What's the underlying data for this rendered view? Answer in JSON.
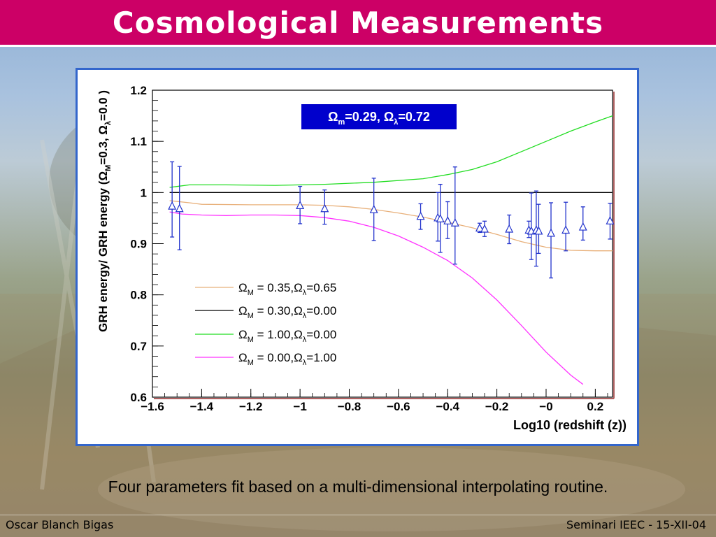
{
  "slide": {
    "title": "Cosmological Measurements",
    "caption": "Four parameters fit based on a multi-dimensional interpolating routine.",
    "footer_left": "Oscar Blanch Bigas",
    "footer_right": "Seminari IEEC - 15-XII-04",
    "title_color": "#cc0066",
    "panel_border_color": "#3366cc"
  },
  "chart_data": {
    "type": "scatter",
    "xlabel": "Log10 (redshift (z))",
    "ylabel_parts": [
      "GRH energy/ GRH energy  (",
      "Ω",
      "M",
      "=0.3, ",
      "Ω",
      "λ",
      "=0.0 )"
    ],
    "xlim": [
      -1.6,
      0.27
    ],
    "ylim": [
      0.6,
      1.2
    ],
    "xticks": [
      -1.6,
      -1.4,
      -1.2,
      -1,
      -0.8,
      -0.6,
      -0.4,
      -0.2,
      0,
      0.2
    ],
    "xtick_labels": [
      "−1.6",
      "−1.4",
      "−1.2",
      "−1",
      "−0.8",
      "−0.6",
      "−0.4",
      "−0.2",
      "−0",
      "0.2"
    ],
    "yticks": [
      0.6,
      0.7,
      0.8,
      0.9,
      1.0,
      1.1,
      1.2
    ],
    "ytick_labels": [
      "0.6",
      "0.7",
      "0.8",
      "0.9",
      "1",
      "1.1",
      "1.2"
    ],
    "fit_box": {
      "parts": [
        "Ω",
        "m",
        "=0.29, ",
        "Ω",
        "λ",
        "=0.72"
      ],
      "bg": "#0000cc",
      "color": "#ffffff"
    },
    "points": {
      "name": "data",
      "color": "#2233cc",
      "x": [
        -1.52,
        -1.49,
        -1.0,
        -0.9,
        -0.7,
        -0.51,
        -0.44,
        -0.43,
        -0.4,
        -0.37,
        -0.27,
        -0.25,
        -0.15,
        -0.07,
        -0.06,
        -0.04,
        -0.03,
        0.02,
        0.08,
        0.15,
        0.26
      ],
      "y": [
        0.973,
        0.968,
        0.974,
        0.968,
        0.966,
        0.953,
        0.95,
        0.948,
        0.944,
        0.94,
        0.93,
        0.928,
        0.928,
        0.926,
        0.924,
        0.926,
        0.924,
        0.92,
        0.926,
        0.932,
        0.944
      ],
      "err_lo": [
        0.06,
        0.08,
        0.035,
        0.03,
        0.06,
        0.025,
        0.045,
        0.065,
        0.034,
        0.08,
        0.008,
        0.014,
        0.028,
        0.014,
        0.055,
        0.07,
        0.043,
        0.087,
        0.04,
        0.025,
        0.035
      ],
      "err_hi": [
        0.087,
        0.083,
        0.038,
        0.037,
        0.062,
        0.025,
        0.05,
        0.068,
        0.038,
        0.11,
        0.01,
        0.016,
        0.028,
        0.018,
        0.075,
        0.077,
        0.053,
        0.06,
        0.055,
        0.04,
        0.035
      ]
    },
    "series": [
      {
        "name_parts": [
          "Ω",
          "M",
          " = 0.35,",
          "Ω",
          "λ",
          "=0.65"
        ],
        "color": "#e8b07a",
        "x": [
          -1.53,
          -1.45,
          -1.4,
          -1.2,
          -1.0,
          -0.9,
          -0.8,
          -0.7,
          -0.6,
          -0.5,
          -0.4,
          -0.3,
          -0.2,
          -0.1,
          0.0,
          0.1,
          0.2,
          0.27
        ],
        "y": [
          0.984,
          0.98,
          0.977,
          0.976,
          0.976,
          0.975,
          0.972,
          0.967,
          0.96,
          0.952,
          0.942,
          0.931,
          0.918,
          0.904,
          0.893,
          0.887,
          0.886,
          0.886
        ]
      },
      {
        "name_parts": [
          "Ω",
          "M",
          " = 0.30,",
          "Ω",
          "λ",
          "=0.00"
        ],
        "color": "#000000",
        "x": [
          -1.53,
          0.27
        ],
        "y": [
          1.0,
          1.0
        ]
      },
      {
        "name_parts": [
          "Ω",
          "M",
          " = 1.00,",
          "Ω",
          "λ",
          "=0.00"
        ],
        "color": "#22dd22",
        "x": [
          -1.53,
          -1.45,
          -1.3,
          -1.1,
          -0.9,
          -0.7,
          -0.5,
          -0.4,
          -0.3,
          -0.2,
          -0.1,
          0.0,
          0.1,
          0.2,
          0.27
        ],
        "y": [
          1.01,
          1.015,
          1.015,
          1.014,
          1.016,
          1.02,
          1.027,
          1.035,
          1.045,
          1.06,
          1.08,
          1.1,
          1.12,
          1.138,
          1.15
        ]
      },
      {
        "name_parts": [
          "Ω",
          "M",
          " = 0.00,",
          "Ω",
          "λ",
          "=1.00"
        ],
        "color": "#ff33ff",
        "x": [
          -1.53,
          -1.48,
          -1.4,
          -1.3,
          -1.2,
          -1.1,
          -1.0,
          -0.9,
          -0.8,
          -0.7,
          -0.6,
          -0.5,
          -0.4,
          -0.3,
          -0.2,
          -0.1,
          0.0,
          0.1,
          0.15
        ],
        "y": [
          0.962,
          0.958,
          0.956,
          0.955,
          0.956,
          0.956,
          0.955,
          0.951,
          0.944,
          0.932,
          0.915,
          0.893,
          0.867,
          0.833,
          0.79,
          0.74,
          0.688,
          0.643,
          0.625
        ]
      }
    ],
    "legend_position": "lower-left",
    "grid": false
  }
}
